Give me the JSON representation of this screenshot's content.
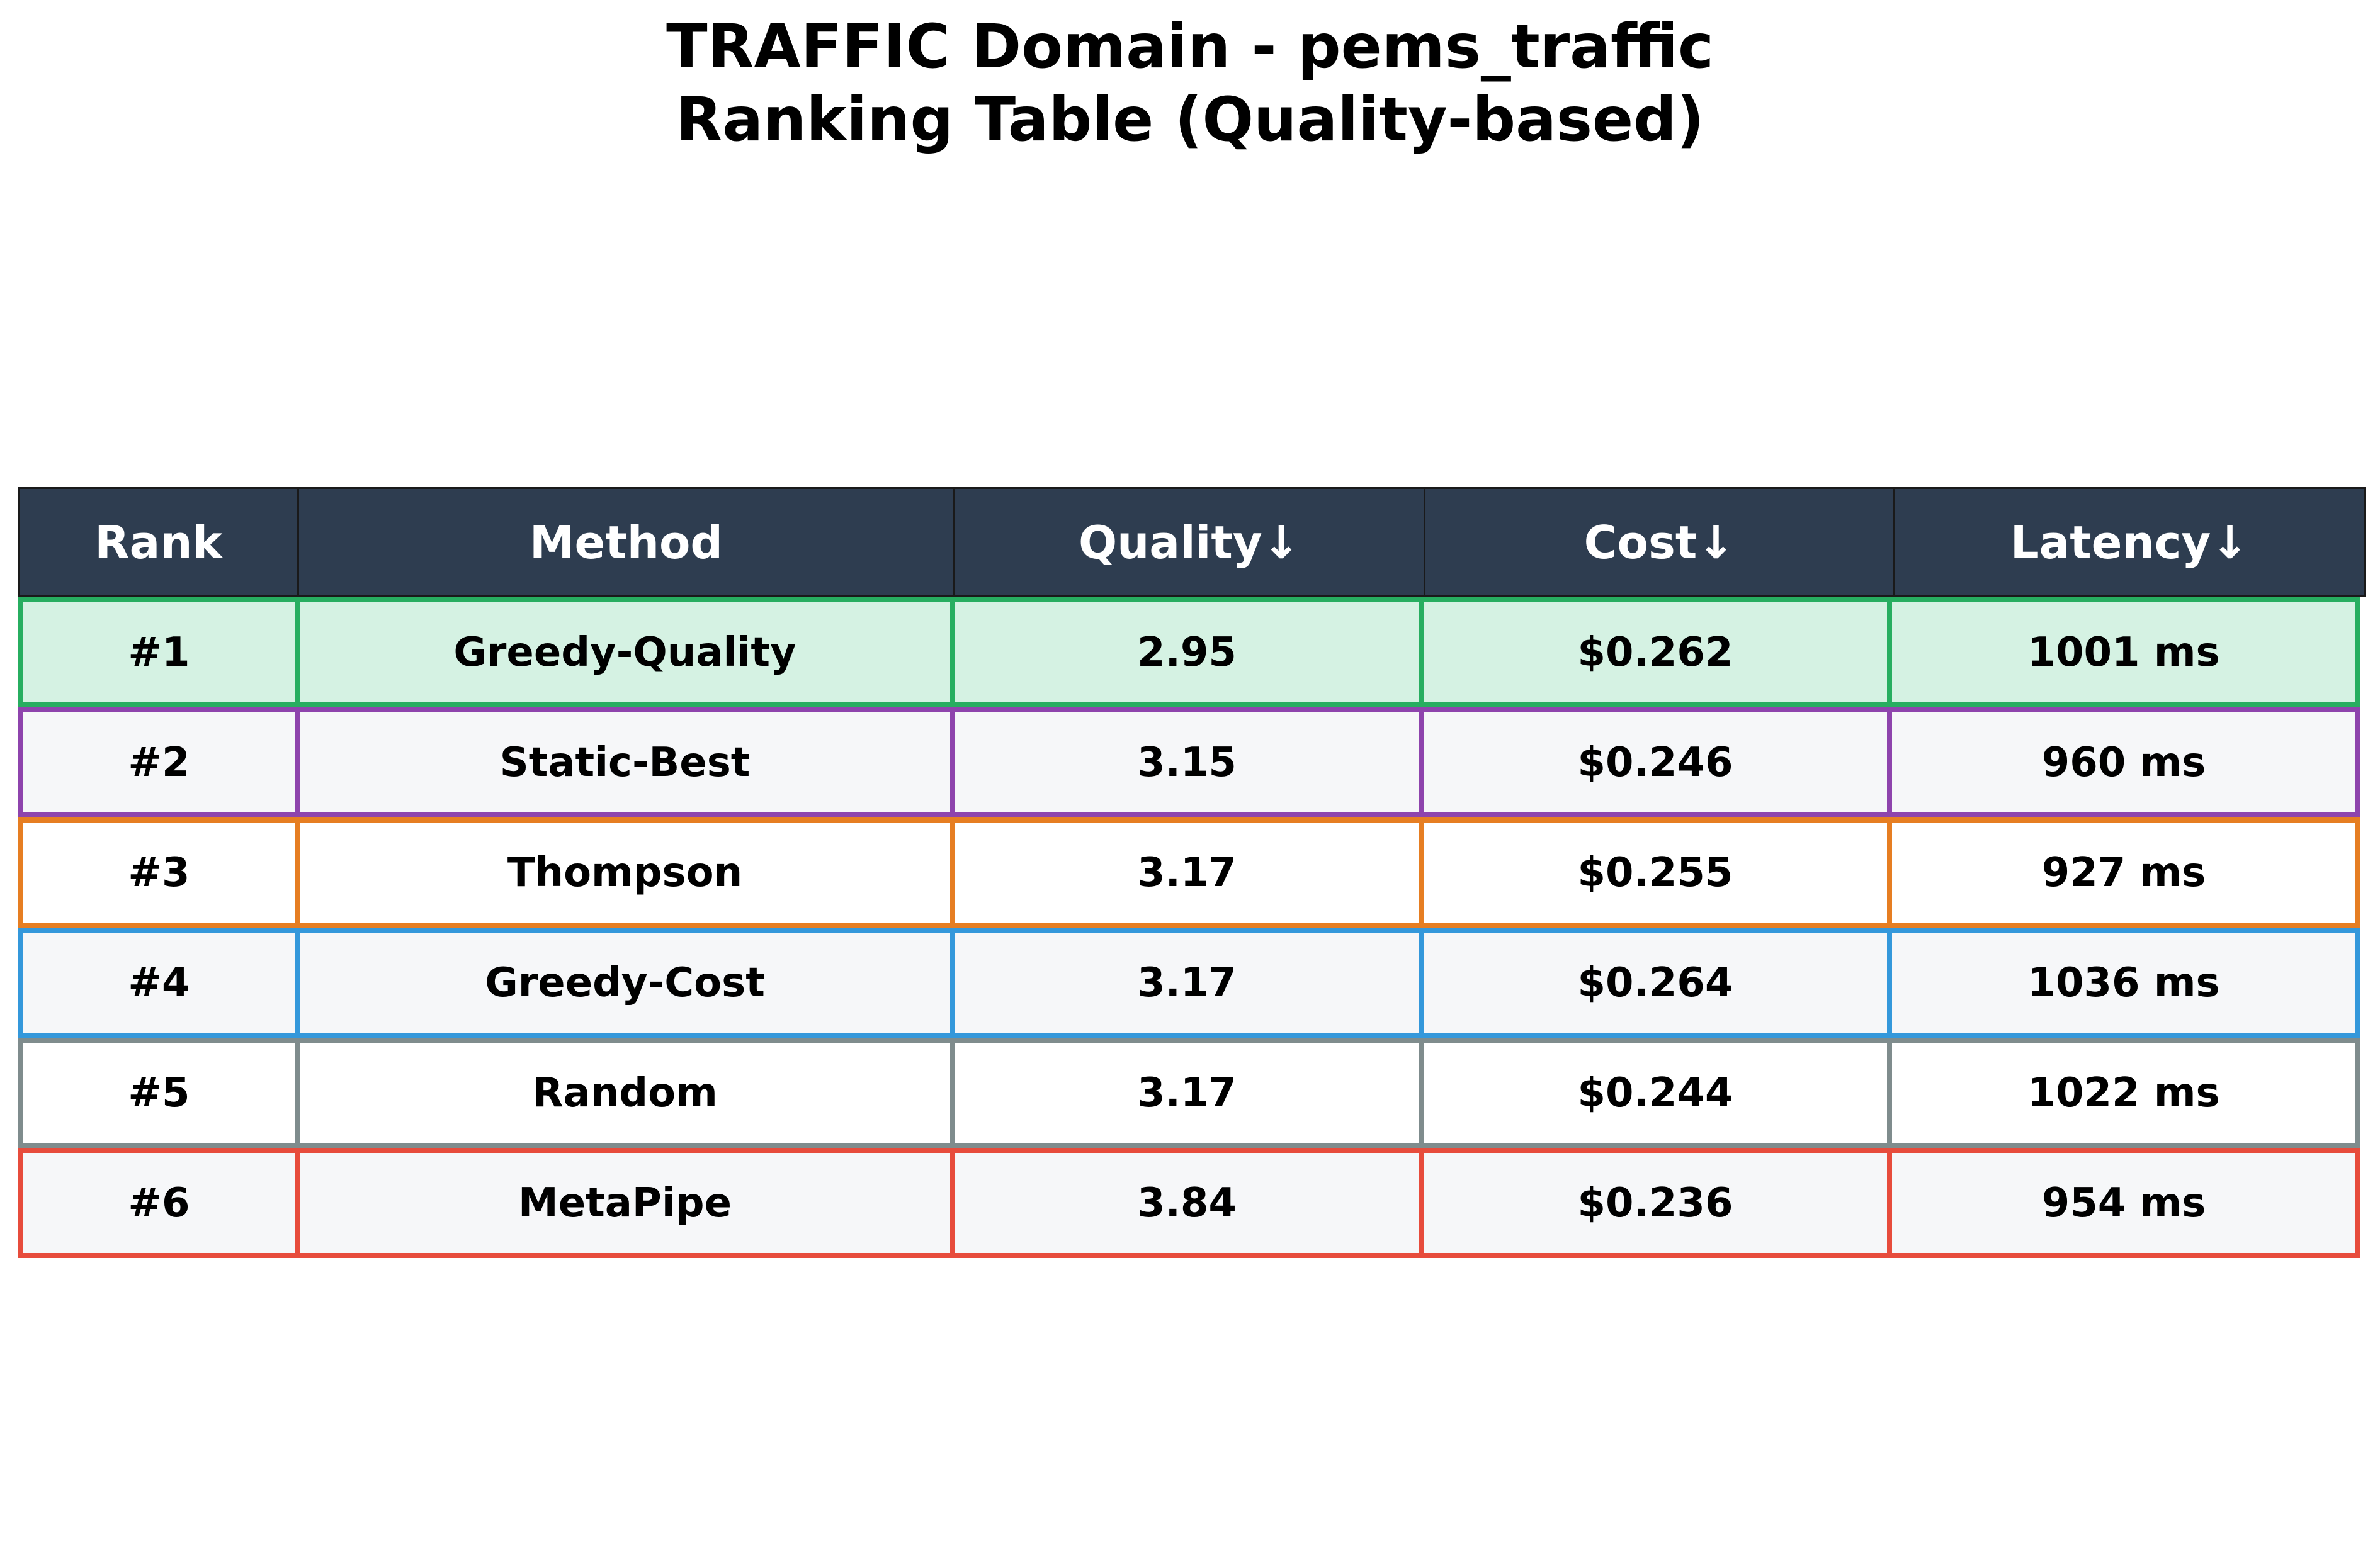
{
  "chart_data": {
    "type": "table",
    "title": [
      "TRAFFIC Domain - pems_traffic",
      "Ranking Table (Quality-based)"
    ],
    "columns": [
      "Rank",
      "Method",
      "Quality↓",
      "Cost↓",
      "Latency↓"
    ],
    "rows": [
      {
        "rank": "#1",
        "method": "Greedy-Quality",
        "quality": "2.95",
        "cost": "$0.262",
        "latency": "1001 ms",
        "border_color": "#27ae60",
        "fill_color": "#d5f2e3"
      },
      {
        "rank": "#2",
        "method": "Static-Best",
        "quality": "3.15",
        "cost": "$0.246",
        "latency": "960 ms",
        "border_color": "#8e44ad",
        "fill_color": "#f6f7f9"
      },
      {
        "rank": "#3",
        "method": "Thompson",
        "quality": "3.17",
        "cost": "$0.255",
        "latency": "927 ms",
        "border_color": "#e67e22",
        "fill_color": "#ffffff"
      },
      {
        "rank": "#4",
        "method": "Greedy-Cost",
        "quality": "3.17",
        "cost": "$0.264",
        "latency": "1036 ms",
        "border_color": "#3498db",
        "fill_color": "#f6f7f9"
      },
      {
        "rank": "#5",
        "method": "Random",
        "quality": "3.17",
        "cost": "$0.244",
        "latency": "1022 ms",
        "border_color": "#7f8c8d",
        "fill_color": "#ffffff"
      },
      {
        "rank": "#6",
        "method": "MetaPipe",
        "quality": "3.84",
        "cost": "$0.236",
        "latency": "954 ms",
        "border_color": "#e74c3c",
        "fill_color": "#f6f7f9"
      }
    ],
    "header_color": "#2e3d50"
  }
}
